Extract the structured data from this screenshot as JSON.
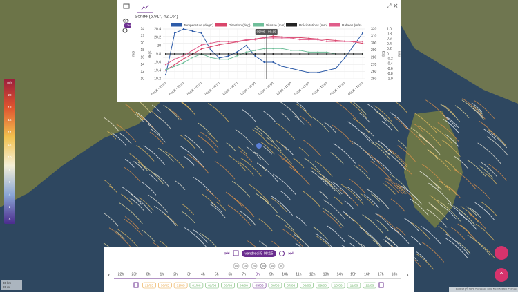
{
  "popup": {
    "title": "Sonde (5.91°, 42.16°)",
    "badge": "12H"
  },
  "chart_data": {
    "type": "line",
    "categories": [
      "04/06 - 21:00",
      null,
      "04/06 - 23:00",
      null,
      "05/06 - 01:00",
      null,
      "05/06 - 03:00",
      null,
      "05/06 - 05:00",
      null,
      "05/06 - 07:00",
      null,
      "05/06 - 09:00",
      null,
      "05/06 - 11:00",
      null,
      "05/06 - 13:00",
      null,
      "05/06 - 15:00",
      null,
      "05/06 - 17:00",
      null,
      "05/06 - 19:00"
    ],
    "axes": [
      {
        "label": "m/s",
        "lim": [
          10,
          24
        ],
        "ticks": [
          10,
          12,
          14,
          16,
          18,
          20,
          22,
          24
        ]
      },
      {
        "label": "degC",
        "lim": [
          19.2,
          20.4
        ],
        "ticks": [
          19.2,
          19.4,
          19.6,
          19.8,
          20,
          20.2,
          20.4
        ]
      },
      {
        "label": "deg",
        "lim": [
          250,
          320
        ],
        "ticks": [
          250,
          260,
          270,
          280,
          290,
          300,
          310,
          320
        ]
      },
      {
        "label": "mm",
        "lim": [
          -1,
          1
        ],
        "ticks": [
          {
            "value": -1,
            "label": "-1.0"
          },
          -0.8,
          -0.6,
          -0.4,
          -0.2,
          0,
          0.2,
          0.4,
          0.6,
          0.8,
          {
            "value": 1,
            "label": "1.0"
          }
        ]
      }
    ],
    "series": [
      {
        "name": "Temperature (degC)",
        "color": "#2d5ba8",
        "axis": 1,
        "values": [
          19.3,
          20.3,
          20.4,
          20.35,
          20.3,
          19.9,
          19.7,
          19.75,
          19.85,
          20.0,
          19.75,
          19.6,
          19.6,
          19.5,
          19.45,
          19.4,
          19.35,
          19.35,
          19.4,
          19.45,
          19.7,
          20.0,
          20.3
        ]
      },
      {
        "name": "Direction (deg)",
        "color": "#d9456a",
        "axis": 2,
        "values": [
          262,
          270,
          278,
          285,
          292,
          295,
          298,
          300,
          302,
          304,
          306,
          308,
          310,
          309,
          308,
          308,
          307,
          306,
          305,
          304,
          303,
          302,
          300
        ]
      },
      {
        "name": "Vitesse (m/s)",
        "color": "#6fbf9a",
        "axis": 0,
        "values": [
          12.5,
          13.5,
          14.5,
          16,
          17,
          16,
          15.5,
          15.5,
          16.5,
          17.5,
          18,
          18.5,
          18.5,
          18.5,
          18,
          18,
          17.5,
          17.5,
          17.5,
          17,
          17,
          17,
          17
        ]
      },
      {
        "name": "Précipitations (mm)",
        "color": "#222222",
        "axis": 3,
        "values": [
          0,
          0,
          0,
          0,
          0,
          0,
          0,
          0,
          0,
          0,
          0,
          0,
          0,
          0,
          0,
          0,
          0,
          0,
          0,
          0,
          0,
          0,
          0
        ]
      },
      {
        "name": "Rafales (m/s)",
        "color": "#e05c8a",
        "axis": 0,
        "values": [
          14,
          15.5,
          16.5,
          18,
          19.5,
          20,
          20.5,
          20.5,
          20.5,
          21,
          21,
          21.5,
          21.5,
          21.5,
          21.5,
          21,
          21,
          21,
          20.5,
          20.5,
          20.5,
          20.5,
          20.5
        ]
      }
    ],
    "cursor_label": "05/06 - 08:15"
  },
  "color_scale": {
    "unit": "m/s",
    "ticks": [
      20,
      18,
      16,
      14,
      12,
      10,
      8,
      6,
      4,
      2,
      0
    ]
  },
  "timeline": {
    "current": "vendredi 5 08:15",
    "speeds": [
      "00",
      "10",
      "20",
      "30",
      "40",
      "50"
    ],
    "hours": [
      "22h",
      "23h",
      "0h",
      "1h",
      "2h",
      "3h",
      "4h",
      "5h",
      "6h",
      "7h",
      "8h",
      "9h",
      "10h",
      "11h",
      "12h",
      "13h",
      "14h",
      "15h",
      "16h",
      "17h",
      "18h"
    ],
    "dates": [
      "29/05",
      "30/05",
      "31/05",
      "01/06",
      "02/06",
      "03/06",
      "04/06",
      "05/06",
      "06/06",
      "07/06",
      "08/06",
      "09/06",
      "10/06",
      "11/06",
      "12/06"
    ]
  },
  "scale": {
    "km": "30 km",
    "mi": "20 mi"
  },
  "attribution": "Leaflet | © IGN, Forecast data from Météo-France"
}
